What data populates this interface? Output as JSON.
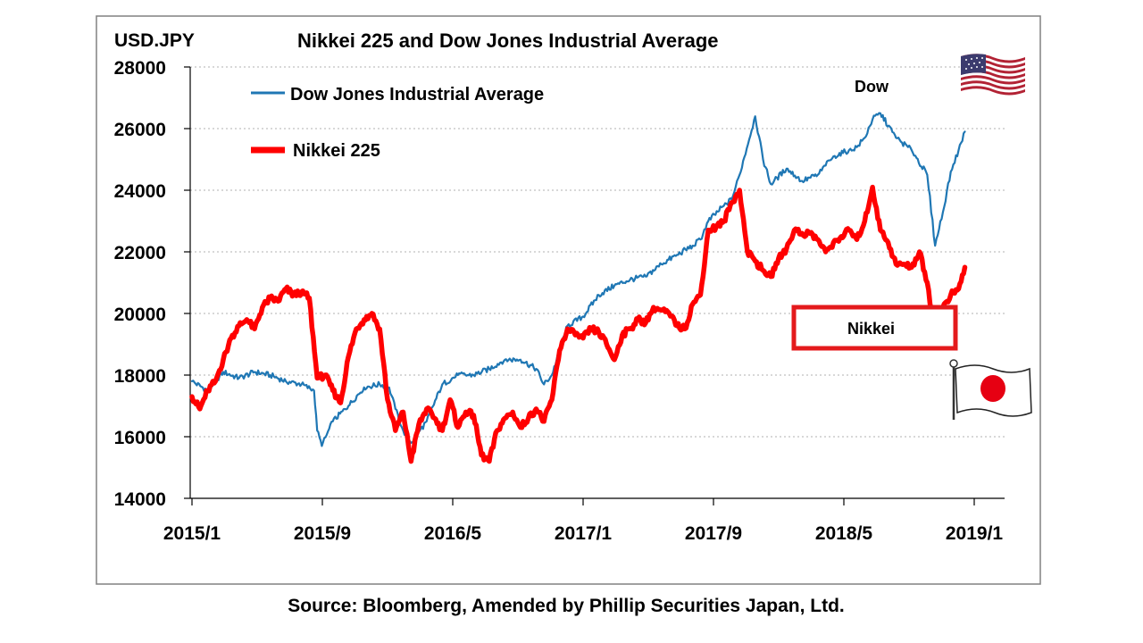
{
  "chart_data": {
    "type": "line",
    "title": "Nikkei 225 and Dow Jones Industrial Average",
    "ylabel": "USD.JPY",
    "xlabel": "",
    "ylim": [
      14000,
      28000
    ],
    "yticks": [
      14000,
      16000,
      18000,
      20000,
      22000,
      24000,
      26000,
      28000
    ],
    "ytick_labels": [
      "14000",
      "16000",
      "18000",
      "20000",
      "22000",
      "24000",
      "26000",
      "28000"
    ],
    "xticks": [
      "2015/1",
      "2015/9",
      "2016/5",
      "2017/1",
      "2017/9",
      "2018/5",
      "2019/1"
    ],
    "x_index_range": [
      0,
      50
    ],
    "grid": "horizontal-dotted",
    "legend_placement": "top-left",
    "series": [
      {
        "name": "Dow Jones Industrial Average",
        "color": "#1f77b4",
        "x": [
          0,
          1,
          2,
          3,
          4,
          5,
          6,
          7,
          7.8,
          8,
          8.3,
          9,
          10,
          11,
          12,
          12.6,
          13,
          13.5,
          14,
          15,
          16,
          17,
          18,
          19,
          20,
          21,
          22,
          22.5,
          23,
          24,
          25,
          26,
          27,
          28,
          29,
          30,
          31,
          32,
          32.5,
          33,
          34,
          34.5,
          35,
          36,
          36.5,
          37,
          38,
          39,
          40,
          40.5,
          41,
          42,
          42.5,
          43,
          43.5,
          44,
          45,
          46,
          47,
          47.5,
          48,
          48.5,
          49,
          49.4
        ],
        "values": [
          17800,
          17500,
          18100,
          17900,
          18100,
          18000,
          17800,
          17700,
          17500,
          16200,
          15700,
          16500,
          17000,
          17600,
          17700,
          17600,
          16900,
          16200,
          15800,
          16500,
          17700,
          18000,
          18000,
          18200,
          18500,
          18500,
          18200,
          17700,
          18000,
          19600,
          19900,
          20600,
          20900,
          21100,
          21200,
          21600,
          21900,
          22200,
          22400,
          23000,
          23500,
          23700,
          24500,
          26400,
          25000,
          24200,
          24700,
          24300,
          24500,
          24800,
          25100,
          25300,
          25400,
          25700,
          26300,
          26500,
          25700,
          25300,
          24500,
          22200,
          23300,
          24600,
          25300,
          25900
        ]
      },
      {
        "name": "Nikkei 225",
        "color": "#ff0000",
        "x": [
          0,
          0.5,
          1,
          1.5,
          2,
          2.5,
          3,
          3.5,
          4,
          4.5,
          5,
          5.5,
          6,
          6.5,
          7,
          7.5,
          8,
          8.5,
          9,
          9.5,
          10,
          10.5,
          11,
          11.5,
          12,
          12.5,
          13,
          13.5,
          14,
          14.5,
          15,
          15.5,
          16,
          16.5,
          17,
          17.5,
          18,
          18.5,
          19,
          19.5,
          20,
          20.5,
          21,
          21.5,
          22,
          22.5,
          23,
          23.5,
          24,
          24.5,
          25,
          25.5,
          26,
          26.5,
          27,
          27.5,
          28,
          28.5,
          29,
          29.5,
          30,
          30.5,
          31,
          31.5,
          32,
          32.5,
          33,
          33.5,
          34,
          34.5,
          35,
          35.5,
          36,
          36.5,
          37,
          37.5,
          38,
          38.5,
          39,
          39.5,
          40,
          40.5,
          41,
          41.5,
          42,
          42.5,
          43,
          43.5,
          44,
          44.5,
          45,
          45.5,
          46,
          46.5,
          47,
          47.5,
          48,
          48.5,
          49,
          49.4
        ],
        "values": [
          17300,
          16900,
          17500,
          17800,
          18500,
          19200,
          19600,
          19800,
          19500,
          20200,
          20500,
          20400,
          20800,
          20600,
          20700,
          20500,
          17900,
          18000,
          17500,
          17100,
          18600,
          19500,
          19800,
          20000,
          19500,
          17200,
          16200,
          16800,
          15200,
          16400,
          16900,
          16600,
          16200,
          17200,
          16300,
          16800,
          16700,
          15400,
          15200,
          16200,
          16600,
          16800,
          16300,
          16600,
          16900,
          16500,
          17200,
          18800,
          19500,
          19300,
          19200,
          19500,
          19400,
          19000,
          18500,
          19300,
          19500,
          19800,
          19700,
          20200,
          20100,
          20000,
          19600,
          19500,
          20300,
          20600,
          22700,
          22800,
          23000,
          23600,
          24000,
          22000,
          21700,
          21400,
          21200,
          21800,
          22100,
          22700,
          22600,
          22600,
          22400,
          22000,
          22300,
          22500,
          22700,
          22400,
          23000,
          24100,
          22700,
          22300,
          21600,
          21600,
          21500,
          22000,
          21000,
          19300,
          20200,
          20600,
          20800,
          21500
        ]
      }
    ],
    "annotations": [
      {
        "text": "Dow",
        "points_to": "Dow Jones Industrial Average"
      },
      {
        "text": "Nikkei",
        "points_to": "Nikkei 225"
      }
    ],
    "source": "Source: Bloomberg, Amended by Phillip Securities Japan, Ltd."
  },
  "images": {
    "us_flag": "us-flag-icon",
    "japan_flag": "japan-flag-icon"
  }
}
